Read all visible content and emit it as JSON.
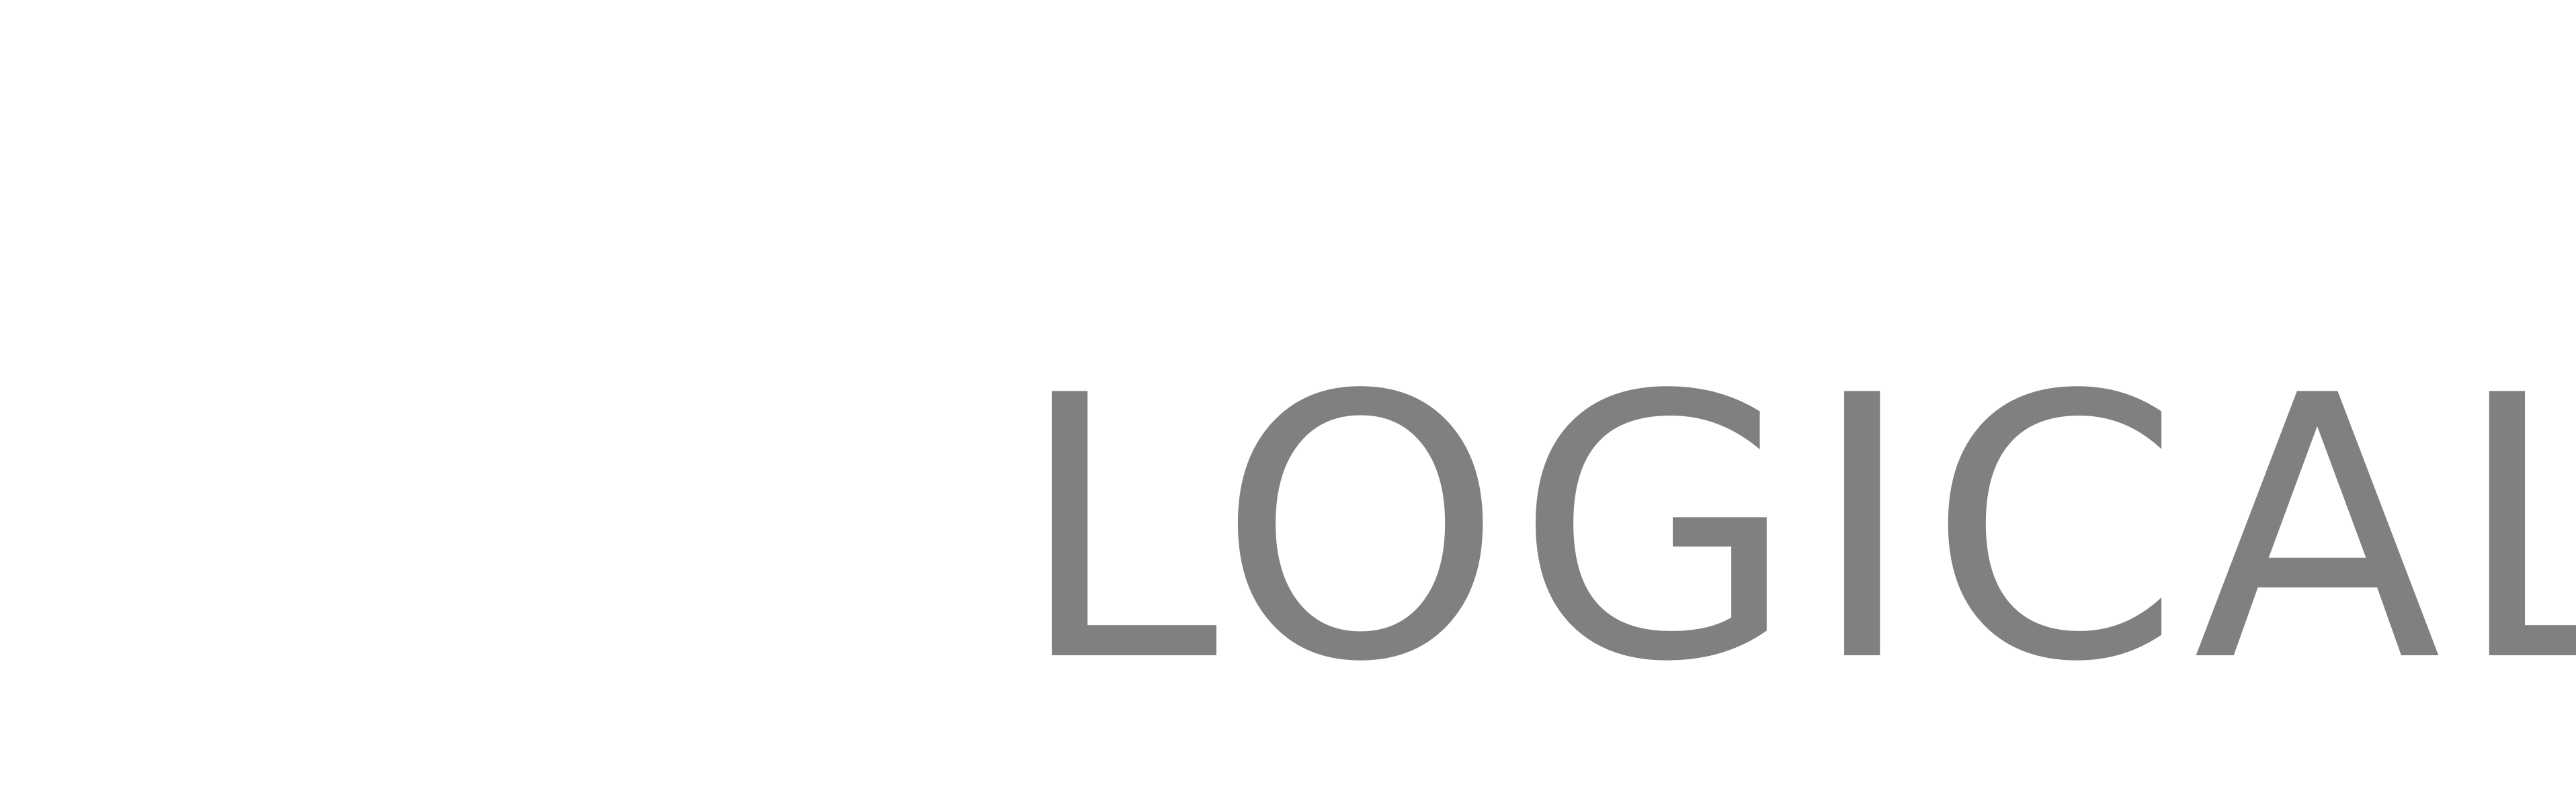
{
  "logo": {
    "text": "LOGICAL",
    "color": "#808083",
    "background": "#ffffff"
  }
}
